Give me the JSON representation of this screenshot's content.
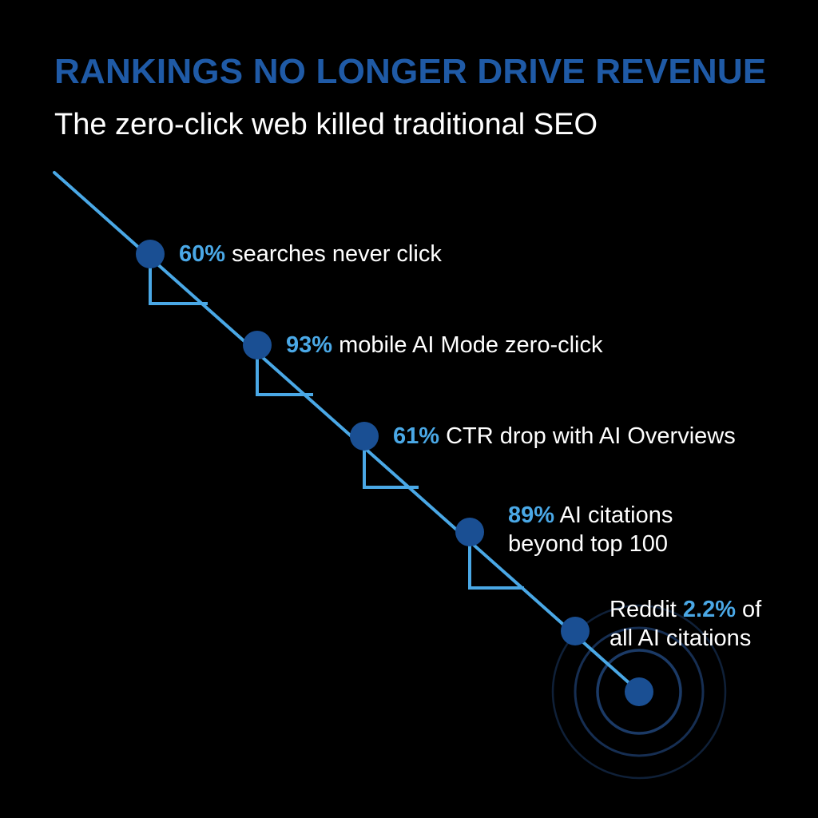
{
  "header": {
    "title": "RANKINGS NO LONGER DRIVE REVENUE",
    "subtitle": "The zero-click web killed traditional SEO"
  },
  "colors": {
    "background": "#000000",
    "title": "#1f5aa6",
    "accent": "#4aa8e6",
    "node": "#1a4f93",
    "ring": "#1b3a66",
    "text": "#ffffff"
  },
  "stats": [
    {
      "before": "",
      "value": "60%",
      "after": " searches never click",
      "after_line2": ""
    },
    {
      "before": "",
      "value": "93%",
      "after": " mobile AI Mode zero-click",
      "after_line2": ""
    },
    {
      "before": "",
      "value": "61%",
      "after": " CTR drop with AI Overviews",
      "after_line2": ""
    },
    {
      "before": "",
      "value": "89%",
      "after": " AI citations",
      "after_line2": "beyond top 100"
    },
    {
      "before": "Reddit ",
      "value": "2.2%",
      "after": " of",
      "after_line2": "all AI citations"
    }
  ]
}
